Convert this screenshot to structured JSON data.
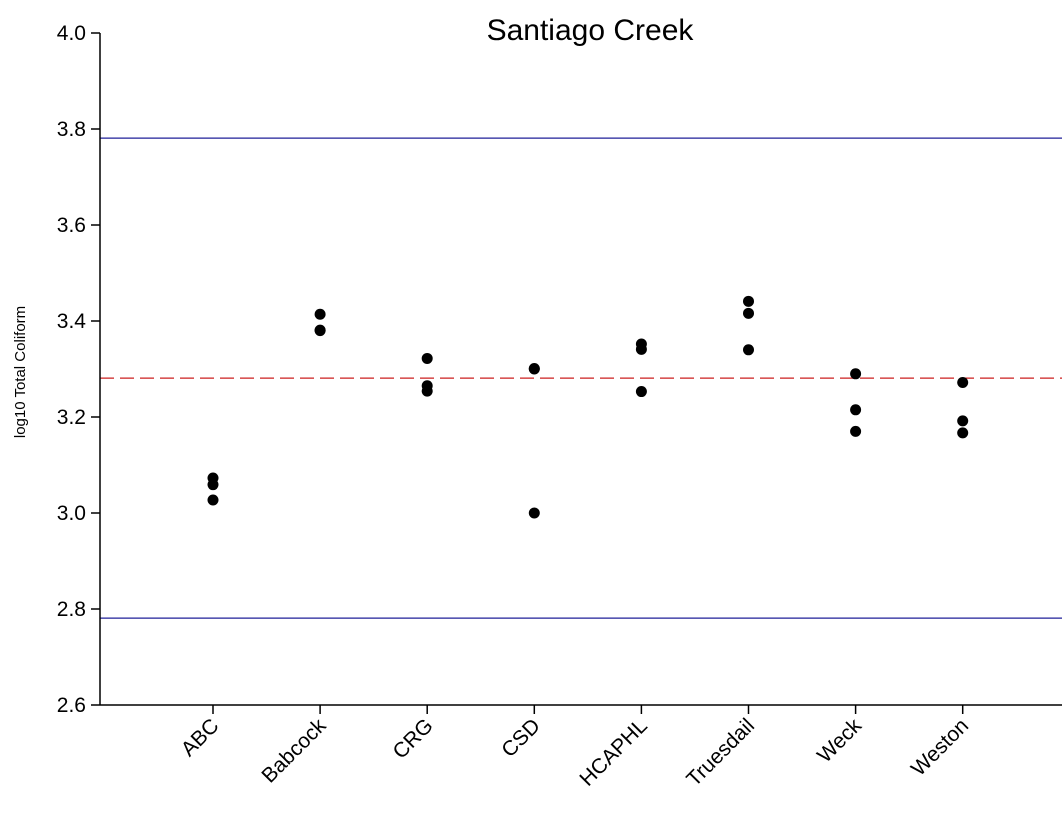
{
  "chart_data": {
    "type": "scatter",
    "title": "Santiago Creek",
    "xlabel": "",
    "ylabel": "log10 Total Coliform",
    "ylim": [
      2.6,
      4.0
    ],
    "yticks": [
      2.6,
      2.8,
      3.0,
      3.2,
      3.4,
      3.6,
      3.8,
      4.0
    ],
    "ytick_labels": [
      "2.6",
      "2.8",
      "3.0",
      "3.2",
      "3.4",
      "3.6",
      "3.8",
      "4.0"
    ],
    "categories": [
      "ABC",
      "Babcock",
      "CRG",
      "CSD",
      "HCAPHL",
      "Truesdail",
      "Weck",
      "Weston"
    ],
    "points": [
      {
        "category": "ABC",
        "values": [
          3.073,
          3.059,
          3.027
        ]
      },
      {
        "category": "Babcock",
        "values": [
          3.414,
          3.381,
          3.38
        ]
      },
      {
        "category": "CRG",
        "values": [
          3.322,
          3.265,
          3.254
        ]
      },
      {
        "category": "CSD",
        "values": [
          3.301,
          3.3,
          3.0
        ]
      },
      {
        "category": "HCAPHL",
        "values": [
          3.352,
          3.341,
          3.253
        ]
      },
      {
        "category": "Truesdail",
        "values": [
          3.441,
          3.416,
          3.34
        ]
      },
      {
        "category": "Weck",
        "values": [
          3.29,
          3.215,
          3.17
        ]
      },
      {
        "category": "Weston",
        "values": [
          3.272,
          3.192,
          3.167
        ]
      }
    ],
    "reference_lines": [
      {
        "value": 3.781,
        "color": "#1f1f99",
        "style": "solid"
      },
      {
        "value": 3.281,
        "color": "#cc1f1f",
        "style": "dashed"
      },
      {
        "value": 2.781,
        "color": "#1f1f99",
        "style": "solid"
      }
    ],
    "marker_color": "#000000",
    "grid": false,
    "legend": "none"
  }
}
